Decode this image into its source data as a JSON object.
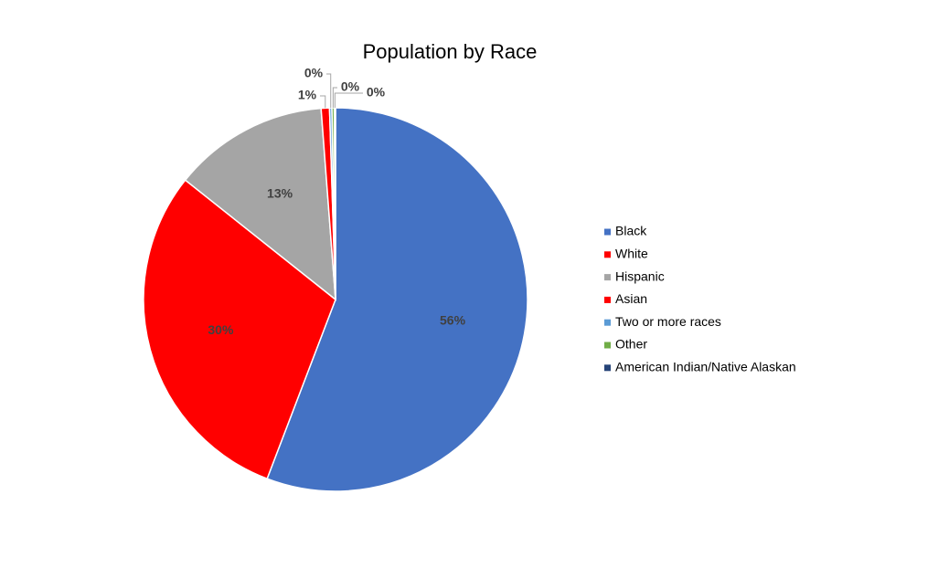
{
  "chart_data": {
    "type": "pie",
    "title": "Population by Race",
    "categories": [
      "Black",
      "White",
      "Hispanic",
      "Asian",
      "Two or more races",
      "Other",
      "American Indian/Native Alaskan"
    ],
    "values": [
      55.8,
      29.9,
      13.1,
      0.7,
      0.2,
      0.2,
      0.1
    ],
    "value_labels": [
      "56%",
      "30%",
      "13%",
      "1%",
      "0%",
      "0%",
      "0%"
    ],
    "colors": [
      "#4472c4",
      "#ff0000",
      "#a5a5a5",
      "#ff0000",
      "#5b9bd5",
      "#70ad47",
      "#264478"
    ],
    "legend": "right"
  }
}
